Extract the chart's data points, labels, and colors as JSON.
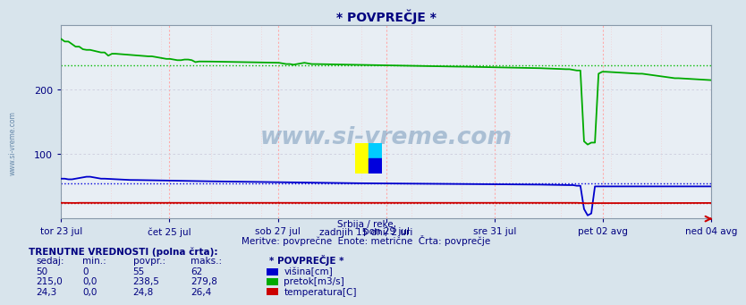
{
  "title": "* POVPREČJE *",
  "subtitle1": "Srbija / reke,",
  "subtitle2": "zadnjih 15 dni/ 2 uri",
  "subtitle3": "Meritve: povprečne  Enote: metrične  Črta: povprečje",
  "xlabel_ticks": [
    "tor 23 jul",
    "čet 25 jul",
    "sob 27 jul",
    "pon 29 jul",
    "sre 31 jul",
    "pet 02 avg",
    "ned 04 avg"
  ],
  "ylim": [
    0,
    300
  ],
  "yticks": [
    100,
    200
  ],
  "bg_color": "#d8e4ec",
  "plot_bg": "#e8eef4",
  "title_color": "#000080",
  "text_color": "#000080",
  "watermark": "www.si-vreme.com",
  "legend_title": "* POVPREČJE *",
  "legend_items": [
    "višina[cm]",
    "pretok[m3/s]",
    "temperatura[C]"
  ],
  "legend_colors": [
    "#0000cc",
    "#00aa00",
    "#cc0000"
  ],
  "table_header": [
    "sedaj:",
    "min.:",
    "povpr.:",
    "maks.:"
  ],
  "table_rows": [
    [
      "50",
      "0",
      "55",
      "62"
    ],
    [
      "215,0",
      "0,0",
      "238,5",
      "279,8"
    ],
    [
      "24,3",
      "0,0",
      "24,8",
      "26,4"
    ]
  ],
  "table_label": "TRENUTNE VREDNOSTI (polna črta):",
  "n_points": 180
}
